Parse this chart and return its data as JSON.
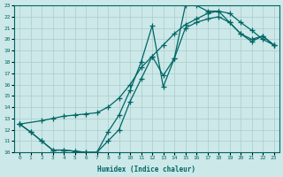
{
  "xlabel": "Humidex (Indice chaleur)",
  "xlim": [
    -0.5,
    23.5
  ],
  "ylim": [
    10,
    23
  ],
  "xticks": [
    0,
    1,
    2,
    3,
    4,
    5,
    6,
    7,
    8,
    9,
    10,
    11,
    12,
    13,
    14,
    15,
    16,
    17,
    18,
    19,
    20,
    21,
    22,
    23
  ],
  "yticks": [
    10,
    11,
    12,
    13,
    14,
    15,
    16,
    17,
    18,
    19,
    20,
    21,
    22,
    23
  ],
  "bg_color": "#cce8e8",
  "line_color": "#006666",
  "grid_color": "#aacccc",
  "line1_x": [
    0,
    1,
    2,
    3,
    4,
    5,
    6,
    7,
    8,
    9,
    10,
    11,
    12,
    13,
    14,
    15,
    16,
    17,
    18,
    19,
    20,
    21,
    22,
    23
  ],
  "line1_y": [
    12.5,
    11.8,
    11.0,
    10.2,
    10.2,
    10.1,
    10.0,
    10.0,
    11.8,
    13.3,
    15.5,
    18.0,
    21.2,
    15.8,
    18.3,
    23.0,
    23.0,
    22.5,
    22.5,
    21.5,
    20.5,
    19.8,
    20.3,
    19.5
  ],
  "line2_x": [
    0,
    2,
    3,
    4,
    5,
    6,
    7,
    8,
    9,
    10,
    11,
    12,
    13,
    14,
    15,
    16,
    17,
    18,
    19,
    20,
    21,
    22,
    23
  ],
  "line2_y": [
    12.5,
    12.8,
    13.0,
    13.2,
    13.3,
    13.4,
    13.5,
    14.0,
    14.8,
    16.0,
    17.5,
    18.5,
    19.5,
    20.5,
    21.3,
    21.8,
    22.3,
    22.5,
    22.3,
    21.5,
    20.8,
    20.0,
    19.5
  ],
  "line3_x": [
    0,
    1,
    2,
    3,
    4,
    5,
    6,
    7,
    8,
    9,
    10,
    11,
    12,
    13,
    14,
    15,
    16,
    17,
    18,
    19,
    20,
    21,
    22,
    23
  ],
  "line3_y": [
    12.5,
    11.8,
    11.0,
    10.2,
    10.2,
    10.1,
    10.0,
    10.0,
    11.0,
    12.0,
    14.5,
    16.5,
    18.5,
    16.8,
    18.3,
    21.0,
    21.5,
    21.8,
    22.0,
    21.5,
    20.5,
    20.0,
    20.3,
    19.5
  ]
}
